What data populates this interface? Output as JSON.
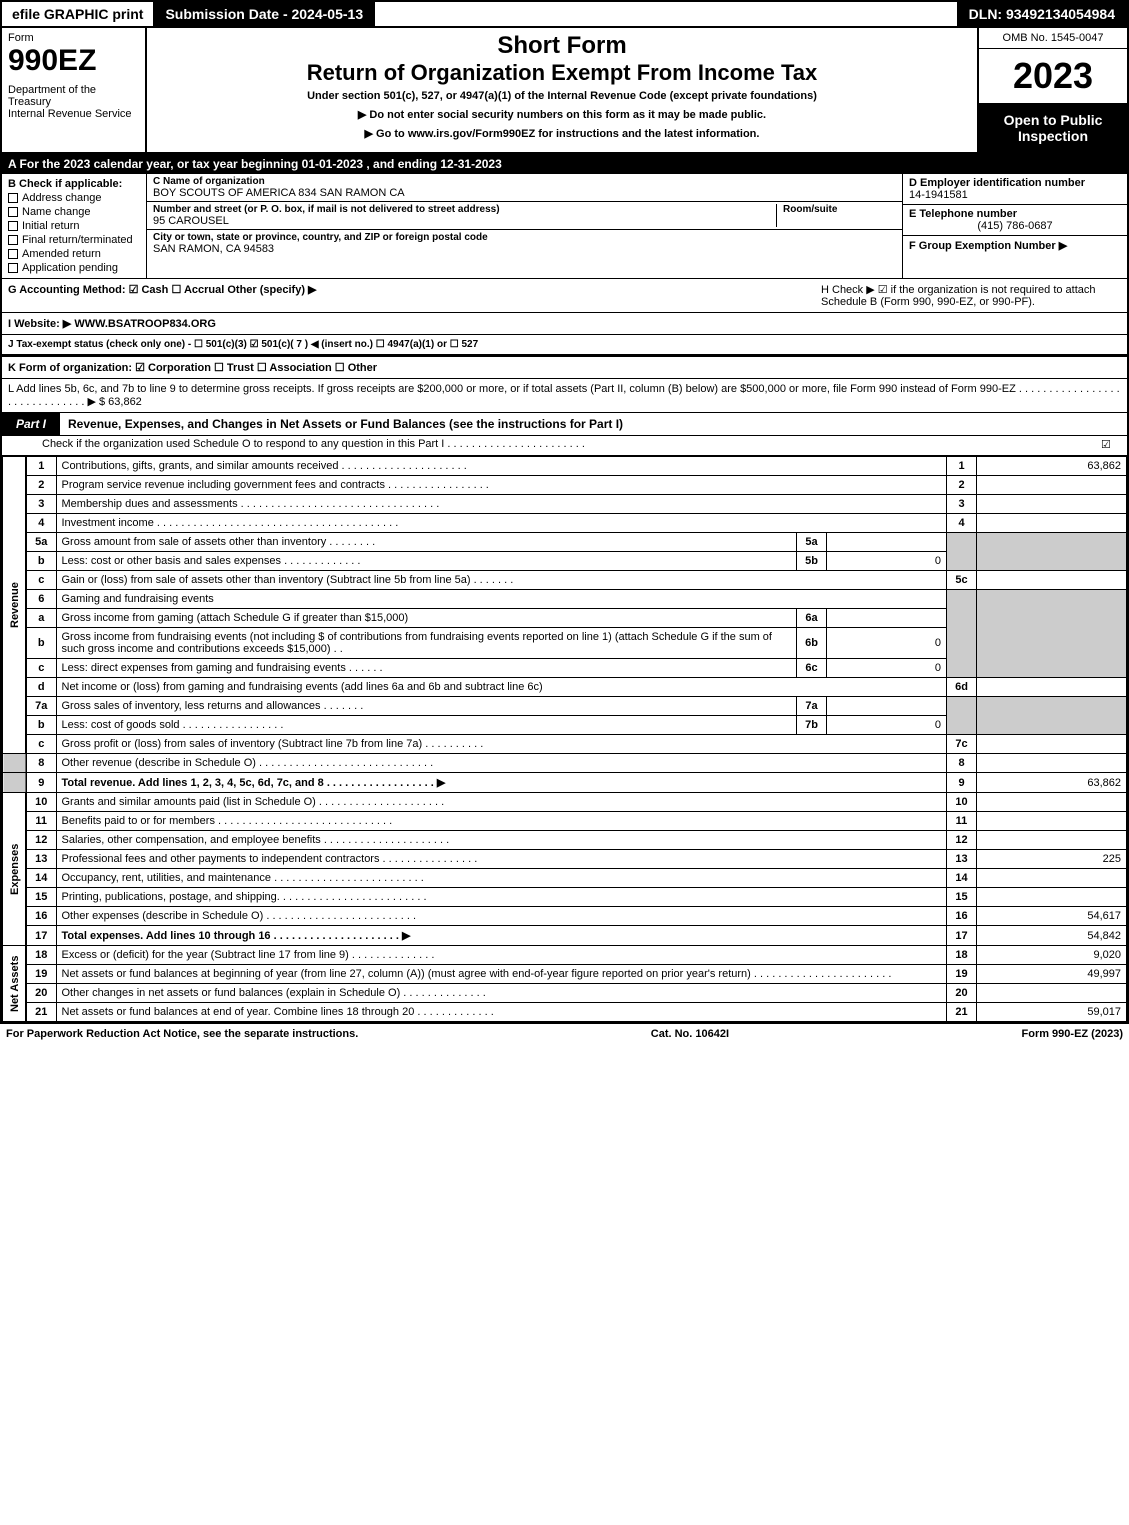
{
  "topbar": {
    "efile": "efile GRAPHIC print",
    "subdate": "Submission Date - 2024-05-13",
    "dln": "DLN: 93492134054984"
  },
  "header": {
    "form_label": "Form",
    "form_code": "990EZ",
    "dept": "Department of the Treasury\nInternal Revenue Service",
    "short": "Short Form",
    "title": "Return of Organization Exempt From Income Tax",
    "sub": "Under section 501(c), 527, or 4947(a)(1) of the Internal Revenue Code (except private foundations)",
    "note1": "▶ Do not enter social security numbers on this form as it may be made public.",
    "note2": "▶ Go to www.irs.gov/Form990EZ for instructions and the latest information.",
    "omb": "OMB No. 1545-0047",
    "year": "2023",
    "open": "Open to Public Inspection"
  },
  "section_a": "A  For the 2023 calendar year, or tax year beginning 01-01-2023 , and ending 12-31-2023",
  "b": {
    "label": "B  Check if applicable:",
    "items": [
      "Address change",
      "Name change",
      "Initial return",
      "Final return/terminated",
      "Amended return",
      "Application pending"
    ]
  },
  "c": {
    "label": "C Name of organization",
    "name": "BOY SCOUTS OF AMERICA 834 SAN RAMON CA",
    "addr_label": "Number and street (or P. O. box, if mail is not delivered to street address)",
    "addr": "95 CAROUSEL",
    "room_label": "Room/suite",
    "city_label": "City or town, state or province, country, and ZIP or foreign postal code",
    "city": "SAN RAMON, CA  94583"
  },
  "d": {
    "label": "D Employer identification number",
    "val": "14-1941581"
  },
  "e": {
    "label": "E Telephone number",
    "val": "(415) 786-0687"
  },
  "f": {
    "label": "F Group Exemption Number  ▶",
    "val": ""
  },
  "g": "G Accounting Method:   ☑ Cash   ☐ Accrual   Other (specify) ▶",
  "h": "H   Check ▶ ☑ if the organization is not required to attach Schedule B (Form 990, 990-EZ, or 990-PF).",
  "i": "I Website: ▶ WWW.BSATROOP834.ORG",
  "j": "J Tax-exempt status (check only one) -  ☐ 501(c)(3)  ☑ 501(c)( 7 ) ◀ (insert no.)  ☐ 4947(a)(1) or  ☐ 527",
  "k": "K Form of organization:   ☑ Corporation   ☐ Trust   ☐ Association   ☐ Other",
  "l": {
    "text": "L Add lines 5b, 6c, and 7b to line 9 to determine gross receipts. If gross receipts are $200,000 or more, or if total assets (Part II, column (B) below) are $500,000 or more, file Form 990 instead of Form 990-EZ . . . . . . . . . . . . . . . . . . . . . . . . . . . . . .  ▶",
    "amount": "$ 63,862"
  },
  "part1": {
    "tab": "Part I",
    "title": "Revenue, Expenses, and Changes in Net Assets or Fund Balances (see the instructions for Part I)",
    "sub": "Check if the organization used Schedule O to respond to any question in this Part I . . . . . . . . . . . . . . . . . . . . . . .",
    "sub_checked": "☑"
  },
  "sides": {
    "revenue": "Revenue",
    "expenses": "Expenses",
    "net": "Net Assets"
  },
  "lines": {
    "l1": {
      "n": "1",
      "d": "Contributions, gifts, grants, and similar amounts received . . . . . . . . . . . . . . . . . . . . .",
      "r": "1",
      "a": "63,862"
    },
    "l2": {
      "n": "2",
      "d": "Program service revenue including government fees and contracts . . . . . . . . . . . . . . . . .",
      "r": "2",
      "a": ""
    },
    "l3": {
      "n": "3",
      "d": "Membership dues and assessments . . . . . . . . . . . . . . . . . . . . . . . . . . . . . . . . .",
      "r": "3",
      "a": ""
    },
    "l4": {
      "n": "4",
      "d": "Investment income . . . . . . . . . . . . . . . . . . . . . . . . . . . . . . . . . . . . . . . .",
      "r": "4",
      "a": ""
    },
    "l5a": {
      "n": "5a",
      "d": "Gross amount from sale of assets other than inventory . . . . . . . .",
      "s": "5a",
      "sa": ""
    },
    "l5b": {
      "n": "b",
      "d": "Less: cost or other basis and sales expenses . . . . . . . . . . . . .",
      "s": "5b",
      "sa": "0"
    },
    "l5c": {
      "n": "c",
      "d": "Gain or (loss) from sale of assets other than inventory (Subtract line 5b from line 5a) . . . . . . .",
      "r": "5c",
      "a": ""
    },
    "l6": {
      "n": "6",
      "d": "Gaming and fundraising events"
    },
    "l6a": {
      "n": "a",
      "d": "Gross income from gaming (attach Schedule G if greater than $15,000)",
      "s": "6a",
      "sa": ""
    },
    "l6b": {
      "n": "b",
      "d": "Gross income from fundraising events (not including $                       of contributions from fundraising events reported on line 1) (attach Schedule G if the sum of such gross income and contributions exceeds $15,000)   . .",
      "s": "6b",
      "sa": "0"
    },
    "l6c": {
      "n": "c",
      "d": "Less: direct expenses from gaming and fundraising events   . . . . . .",
      "s": "6c",
      "sa": "0"
    },
    "l6d": {
      "n": "d",
      "d": "Net income or (loss) from gaming and fundraising events (add lines 6a and 6b and subtract line 6c)",
      "r": "6d",
      "a": ""
    },
    "l7a": {
      "n": "7a",
      "d": "Gross sales of inventory, less returns and allowances . . . . . . .",
      "s": "7a",
      "sa": ""
    },
    "l7b": {
      "n": "b",
      "d": "Less: cost of goods sold     . . . . . . . . . . . . . . . . .",
      "s": "7b",
      "sa": "0"
    },
    "l7c": {
      "n": "c",
      "d": "Gross profit or (loss) from sales of inventory (Subtract line 7b from line 7a) . . . . . . . . . .",
      "r": "7c",
      "a": ""
    },
    "l8": {
      "n": "8",
      "d": "Other revenue (describe in Schedule O) . . . . . . . . . . . . . . . . . . . . . . . . . . . . .",
      "r": "8",
      "a": ""
    },
    "l9": {
      "n": "9",
      "d": "Total revenue. Add lines 1, 2, 3, 4, 5c, 6d, 7c, and 8  . . . . . . . . . . . . . . . . . .  ▶",
      "r": "9",
      "a": "63,862"
    },
    "l10": {
      "n": "10",
      "d": "Grants and similar amounts paid (list in Schedule O) . . . . . . . . . . . . . . . . . . . . .",
      "r": "10",
      "a": ""
    },
    "l11": {
      "n": "11",
      "d": "Benefits paid to or for members     . . . . . . . . . . . . . . . . . . . . . . . . . . . . .",
      "r": "11",
      "a": ""
    },
    "l12": {
      "n": "12",
      "d": "Salaries, other compensation, and employee benefits . . . . . . . . . . . . . . . . . . . . .",
      "r": "12",
      "a": ""
    },
    "l13": {
      "n": "13",
      "d": "Professional fees and other payments to independent contractors . . . . . . . . . . . . . . . .",
      "r": "13",
      "a": "225"
    },
    "l14": {
      "n": "14",
      "d": "Occupancy, rent, utilities, and maintenance . . . . . . . . . . . . . . . . . . . . . . . . .",
      "r": "14",
      "a": ""
    },
    "l15": {
      "n": "15",
      "d": "Printing, publications, postage, and shipping. . . . . . . . . . . . . . . . . . . . . . . . .",
      "r": "15",
      "a": ""
    },
    "l16": {
      "n": "16",
      "d": "Other expenses (describe in Schedule O)    . . . . . . . . . . . . . . . . . . . . . . . . .",
      "r": "16",
      "a": "54,617"
    },
    "l17": {
      "n": "17",
      "d": "Total expenses. Add lines 10 through 16    . . . . . . . . . . . . . . . . . . . . .  ▶",
      "r": "17",
      "a": "54,842"
    },
    "l18": {
      "n": "18",
      "d": "Excess or (deficit) for the year (Subtract line 17 from line 9)      . . . . . . . . . . . . . .",
      "r": "18",
      "a": "9,020"
    },
    "l19": {
      "n": "19",
      "d": "Net assets or fund balances at beginning of year (from line 27, column (A)) (must agree with end-of-year figure reported on prior year's return) . . . . . . . . . . . . . . . . . . . . . . .",
      "r": "19",
      "a": "49,997"
    },
    "l20": {
      "n": "20",
      "d": "Other changes in net assets or fund balances (explain in Schedule O) . . . . . . . . . . . . . .",
      "r": "20",
      "a": ""
    },
    "l21": {
      "n": "21",
      "d": "Net assets or fund balances at end of year. Combine lines 18 through 20 . . . . . . . . . . . . .",
      "r": "21",
      "a": "59,017"
    }
  },
  "footer": {
    "left": "For Paperwork Reduction Act Notice, see the separate instructions.",
    "mid": "Cat. No. 10642I",
    "right": "Form 990-EZ (2023)"
  }
}
